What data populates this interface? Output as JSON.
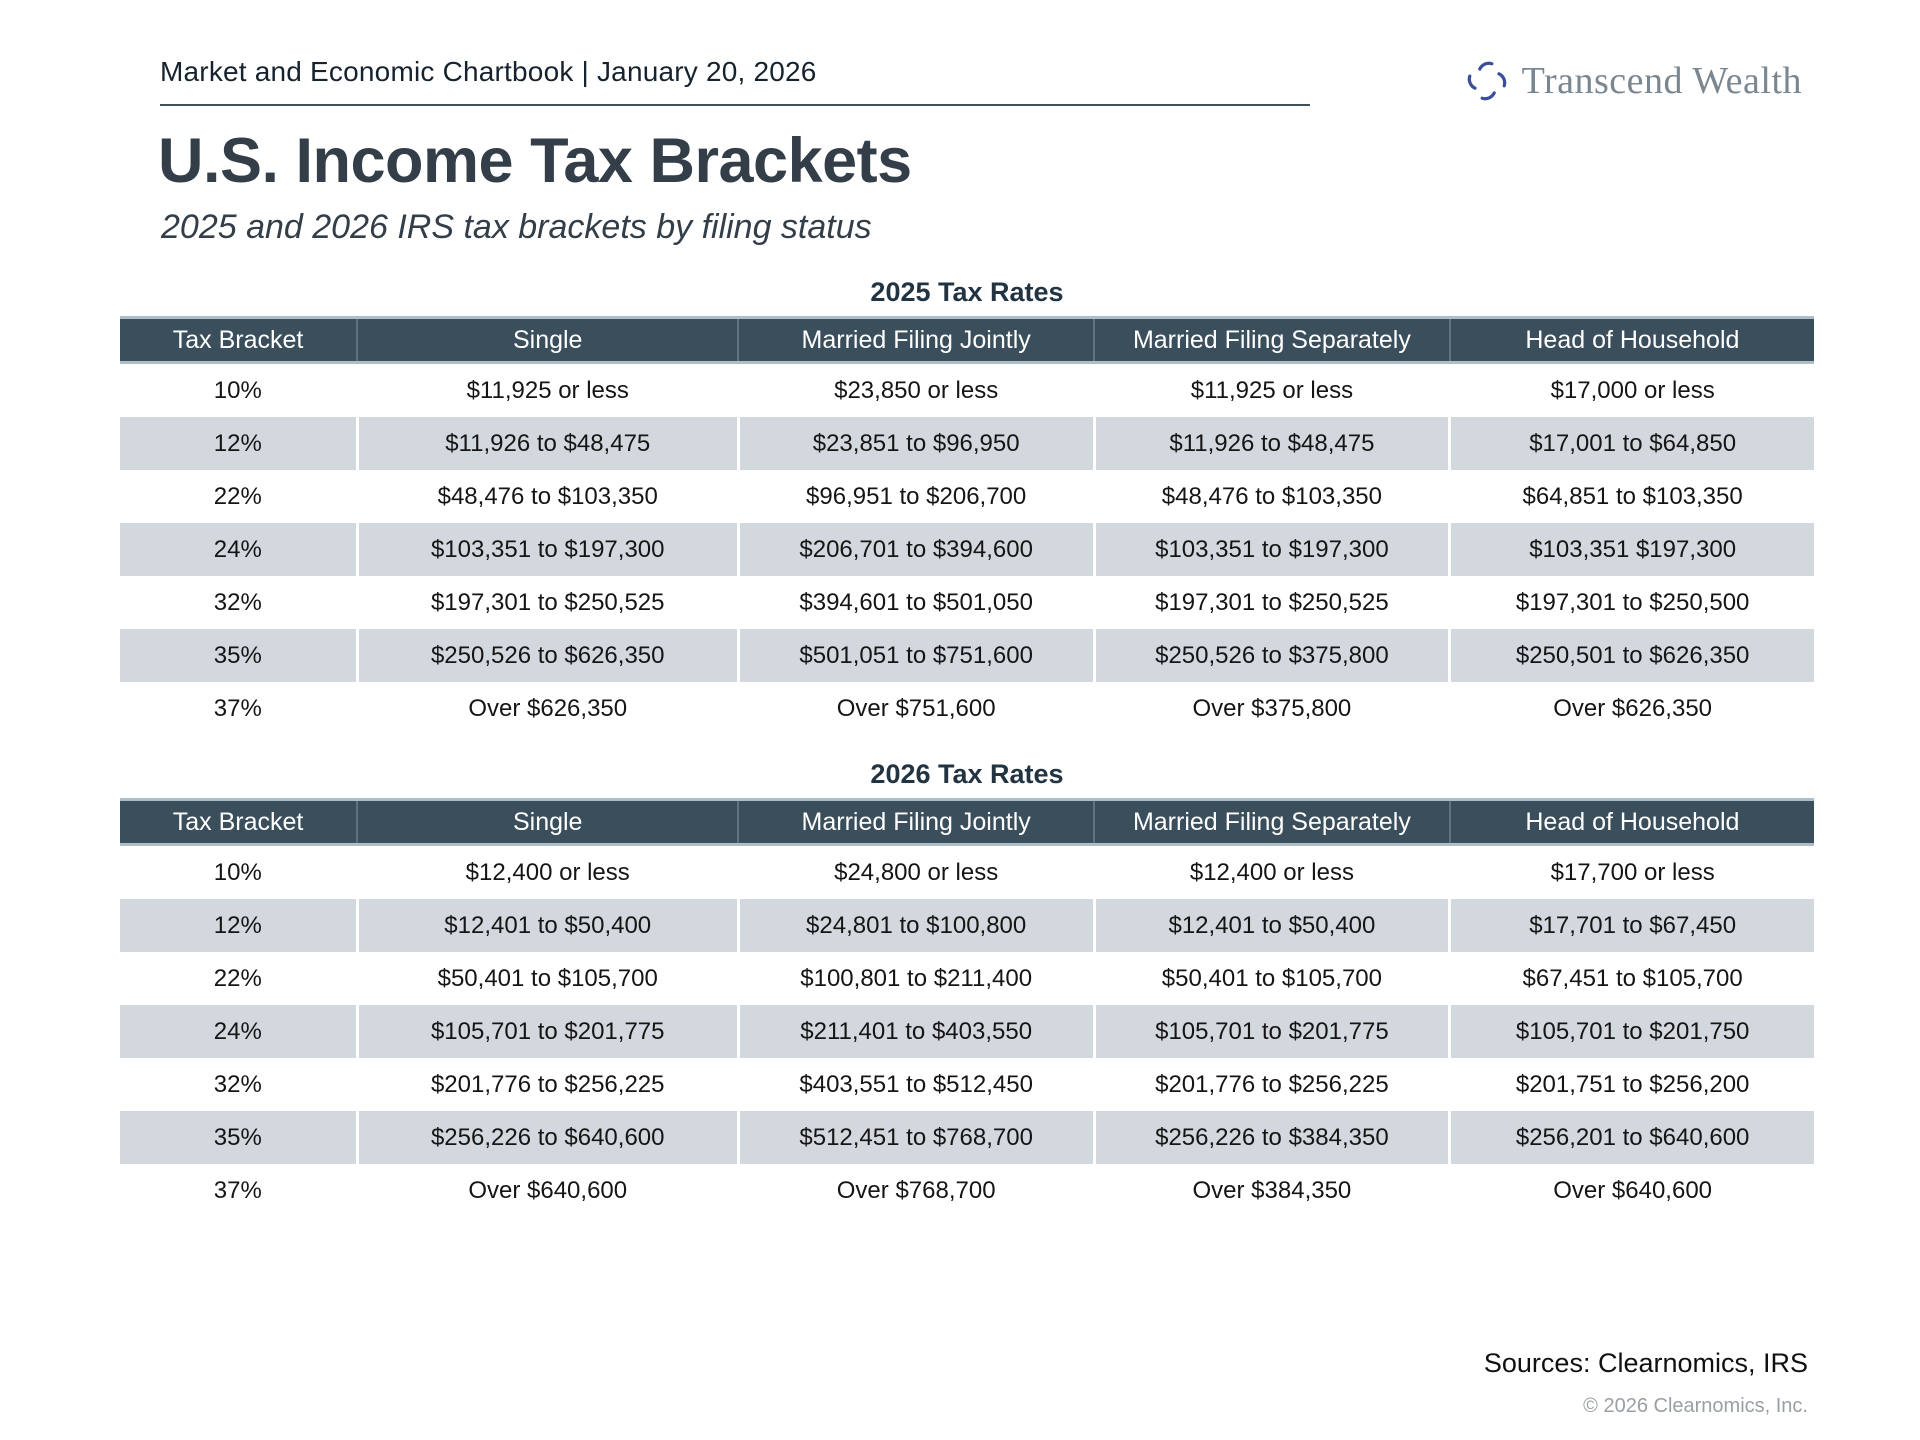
{
  "header": {
    "chartbook_title": "Market and Economic Chartbook | January 20, 2026",
    "brand": {
      "name": "Transcend Wealth",
      "icon": "pinwheel-icon",
      "icon_color": "#3d4d9c",
      "text_color": "#7b8790"
    }
  },
  "page": {
    "title": "U.S. Income Tax Brackets",
    "subtitle": "2025 and 2026 IRS tax brackets by filing status"
  },
  "tables": [
    {
      "title": "2025 Tax Rates",
      "columns": [
        "Tax Bracket",
        "Single",
        "Married Filing Jointly",
        "Married Filing Separately",
        "Head of Household"
      ],
      "rows": [
        [
          "10%",
          "$11,925 or less",
          "$23,850 or less",
          "$11,925 or less",
          "$17,000 or less"
        ],
        [
          "12%",
          "$11,926 to $48,475",
          "$23,851 to $96,950",
          "$11,926 to $48,475",
          "$17,001 to $64,850"
        ],
        [
          "22%",
          "$48,476 to $103,350",
          "$96,951 to $206,700",
          "$48,476 to $103,350",
          "$64,851 to $103,350"
        ],
        [
          "24%",
          "$103,351 to $197,300",
          "$206,701 to $394,600",
          "$103,351 to $197,300",
          "$103,351 $197,300"
        ],
        [
          "32%",
          "$197,301 to $250,525",
          "$394,601 to $501,050",
          "$197,301 to $250,525",
          "$197,301 to $250,500"
        ],
        [
          "35%",
          "$250,526 to $626,350",
          "$501,051 to $751,600",
          "$250,526 to $375,800",
          "$250,501 to $626,350"
        ],
        [
          "37%",
          "Over $626,350",
          "Over $751,600",
          "Over $375,800",
          "Over $626,350"
        ]
      ]
    },
    {
      "title": "2026 Tax Rates",
      "columns": [
        "Tax Bracket",
        "Single",
        "Married Filing Jointly",
        "Married Filing Separately",
        "Head of Household"
      ],
      "rows": [
        [
          "10%",
          "$12,400 or less",
          "$24,800 or less",
          "$12,400 or less",
          "$17,700 or less"
        ],
        [
          "12%",
          "$12,401 to $50,400",
          "$24,801 to $100,800",
          "$12,401 to $50,400",
          "$17,701 to $67,450"
        ],
        [
          "22%",
          "$50,401 to $105,700",
          "$100,801 to $211,400",
          "$50,401 to $105,700",
          "$67,451 to $105,700"
        ],
        [
          "24%",
          "$105,701 to $201,775",
          "$211,401 to $403,550",
          "$105,701 to $201,775",
          "$105,701 to $201,750"
        ],
        [
          "32%",
          "$201,776 to $256,225",
          "$403,551 to $512,450",
          "$201,776 to $256,225",
          "$201,751 to $256,200"
        ],
        [
          "35%",
          "$256,226 to $640,600",
          "$512,451 to $768,700",
          "$256,226 to $384,350",
          "$256,201 to $640,600"
        ],
        [
          "37%",
          "Over $640,600",
          "Over $768,700",
          "Over $384,350",
          "Over $640,600"
        ]
      ]
    }
  ],
  "footer": {
    "sources": "Sources: Clearnomics, IRS",
    "copyright": "© 2026 Clearnomics, Inc."
  },
  "colors": {
    "table_header_bg": "#3a4e5c",
    "table_stripe_bg": "#d2d8dd",
    "table_header_accent_border": "#aebdc8",
    "title_text": "#333e48",
    "brand_icon_blue": "#3d4d9c"
  },
  "layout": {
    "column_widths_pct": [
      14,
      22.5,
      21,
      21,
      21.5
    ]
  }
}
